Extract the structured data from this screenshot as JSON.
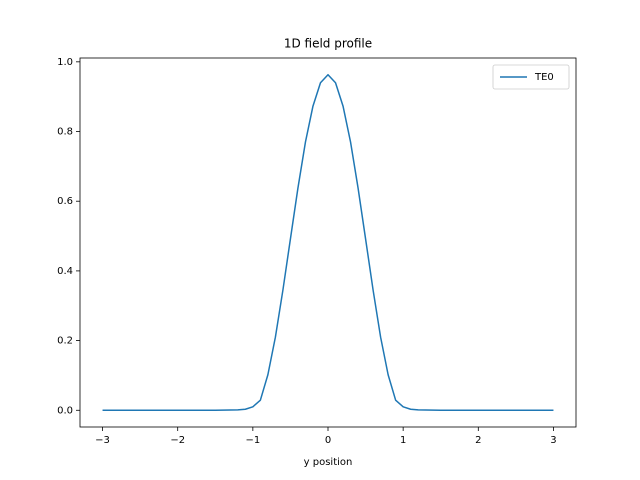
{
  "chart_data": {
    "type": "line",
    "title": "1D field profile",
    "x_label": "y position",
    "x": [
      -3,
      -2,
      -1.5,
      -1.2,
      -1.1,
      -1.0,
      -0.9,
      -0.8,
      -0.7,
      -0.6,
      -0.5,
      -0.4,
      -0.3,
      -0.2,
      -0.1,
      0,
      0.1,
      0.2,
      0.3,
      0.4,
      0.5,
      0.6,
      0.7,
      0.8,
      0.9,
      1.0,
      1.1,
      1.2,
      1.5,
      2,
      3
    ],
    "series": [
      {
        "name": "TE0",
        "color": "#1f77b4",
        "values": [
          0,
          0,
          0,
          0.001,
          0.003,
          0.01,
          0.029,
          0.102,
          0.21,
          0.345,
          0.492,
          0.638,
          0.77,
          0.873,
          0.94,
          0.963,
          0.94,
          0.873,
          0.77,
          0.638,
          0.492,
          0.345,
          0.21,
          0.102,
          0.029,
          0.01,
          0.003,
          0.001,
          0,
          0,
          0
        ]
      }
    ],
    "xlim": [
      -3.3,
      3.3
    ],
    "ylim": [
      -0.048,
      1.011
    ],
    "xticks": [
      {
        "value": -3,
        "label": "−3"
      },
      {
        "value": -2,
        "label": "−2"
      },
      {
        "value": -1,
        "label": "−1"
      },
      0,
      1,
      2,
      3
    ],
    "yticks": [
      {
        "value": 0,
        "label": "0.0"
      },
      {
        "value": 0.2,
        "label": "0.2"
      },
      {
        "value": 0.4,
        "label": "0.4"
      },
      {
        "value": 0.6,
        "label": "0.6"
      },
      {
        "value": 0.8,
        "label": "0.8"
      },
      {
        "value": 1.0,
        "label": "1.0"
      }
    ],
    "grid": false,
    "legend": "upper right"
  }
}
